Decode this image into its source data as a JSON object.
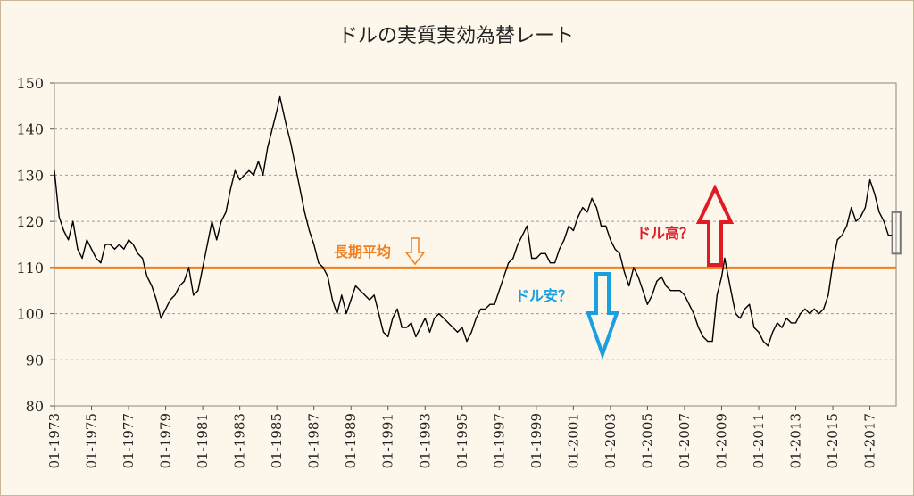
{
  "chart_data": {
    "type": "line",
    "title": "ドルの実質実効為替レート",
    "xlabel": "",
    "ylabel": "",
    "ylim": [
      80,
      150
    ],
    "yticks": [
      80,
      90,
      100,
      110,
      120,
      130,
      140,
      150
    ],
    "grid": "horizontal dashed",
    "x_tick_labels": [
      "01-1973",
      "01-1975",
      "01-1977",
      "01-1979",
      "01-1981",
      "01-1983",
      "01-1985",
      "01-1987",
      "01-1989",
      "01-1991",
      "01-1993",
      "01-1995",
      "01-1997",
      "01-1999",
      "01-2001",
      "01-2003",
      "01-2005",
      "01-2007",
      "01-2009",
      "01-2011",
      "01-2013",
      "01-2015",
      "01-2017"
    ],
    "x_range": [
      "01-1973",
      "01-2018"
    ],
    "series": [
      {
        "color": "#000000",
        "points": [
          [
            "1973-01",
            131
          ],
          [
            "1973-04",
            121
          ],
          [
            "1973-07",
            118
          ],
          [
            "1973-10",
            116
          ],
          [
            "1974-01",
            120
          ],
          [
            "1974-04",
            114
          ],
          [
            "1974-07",
            112
          ],
          [
            "1974-10",
            116
          ],
          [
            "1975-01",
            114
          ],
          [
            "1975-04",
            112
          ],
          [
            "1975-07",
            111
          ],
          [
            "1975-10",
            115
          ],
          [
            "1976-01",
            115
          ],
          [
            "1976-04",
            114
          ],
          [
            "1976-07",
            115
          ],
          [
            "1976-10",
            114
          ],
          [
            "1977-01",
            116
          ],
          [
            "1977-04",
            115
          ],
          [
            "1977-07",
            113
          ],
          [
            "1977-10",
            112
          ],
          [
            "1978-01",
            108
          ],
          [
            "1978-04",
            106
          ],
          [
            "1978-07",
            103
          ],
          [
            "1978-10",
            99
          ],
          [
            "1979-01",
            101
          ],
          [
            "1979-04",
            103
          ],
          [
            "1979-07",
            104
          ],
          [
            "1979-10",
            106
          ],
          [
            "1980-01",
            107
          ],
          [
            "1980-04",
            110
          ],
          [
            "1980-07",
            104
          ],
          [
            "1980-10",
            105
          ],
          [
            "1981-01",
            110
          ],
          [
            "1981-04",
            115
          ],
          [
            "1981-07",
            120
          ],
          [
            "1981-10",
            116
          ],
          [
            "1982-01",
            120
          ],
          [
            "1982-04",
            122
          ],
          [
            "1982-07",
            127
          ],
          [
            "1982-10",
            131
          ],
          [
            "1983-01",
            129
          ],
          [
            "1983-04",
            130
          ],
          [
            "1983-07",
            131
          ],
          [
            "1983-10",
            130
          ],
          [
            "1984-01",
            133
          ],
          [
            "1984-04",
            130
          ],
          [
            "1984-07",
            136
          ],
          [
            "1984-10",
            140
          ],
          [
            "1985-01",
            144
          ],
          [
            "1985-03",
            147
          ],
          [
            "1985-07",
            141
          ],
          [
            "1985-10",
            137
          ],
          [
            "1986-01",
            132
          ],
          [
            "1986-04",
            127
          ],
          [
            "1986-07",
            122
          ],
          [
            "1986-10",
            118
          ],
          [
            "1987-01",
            115
          ],
          [
            "1987-04",
            111
          ],
          [
            "1987-07",
            110
          ],
          [
            "1987-10",
            108
          ],
          [
            "1988-01",
            103
          ],
          [
            "1988-04",
            100
          ],
          [
            "1988-07",
            104
          ],
          [
            "1988-10",
            100
          ],
          [
            "1989-01",
            103
          ],
          [
            "1989-04",
            106
          ],
          [
            "1989-07",
            105
          ],
          [
            "1989-10",
            104
          ],
          [
            "1990-01",
            103
          ],
          [
            "1990-04",
            104
          ],
          [
            "1990-07",
            100
          ],
          [
            "1990-10",
            96
          ],
          [
            "1991-01",
            95
          ],
          [
            "1991-04",
            99
          ],
          [
            "1991-07",
            101
          ],
          [
            "1991-10",
            97
          ],
          [
            "1992-01",
            97
          ],
          [
            "1992-04",
            98
          ],
          [
            "1992-07",
            95
          ],
          [
            "1992-10",
            97
          ],
          [
            "1993-01",
            99
          ],
          [
            "1993-04",
            96
          ],
          [
            "1993-07",
            99
          ],
          [
            "1993-10",
            100
          ],
          [
            "1994-01",
            99
          ],
          [
            "1994-04",
            98
          ],
          [
            "1994-07",
            97
          ],
          [
            "1994-10",
            96
          ],
          [
            "1995-01",
            97
          ],
          [
            "1995-04",
            94
          ],
          [
            "1995-07",
            96
          ],
          [
            "1995-10",
            99
          ],
          [
            "1996-01",
            101
          ],
          [
            "1996-04",
            101
          ],
          [
            "1996-07",
            102
          ],
          [
            "1996-10",
            102
          ],
          [
            "1997-01",
            105
          ],
          [
            "1997-04",
            108
          ],
          [
            "1997-07",
            111
          ],
          [
            "1997-10",
            112
          ],
          [
            "1998-01",
            115
          ],
          [
            "1998-04",
            117
          ],
          [
            "1998-07",
            119
          ],
          [
            "1998-10",
            112
          ],
          [
            "1999-01",
            112
          ],
          [
            "1999-04",
            113
          ],
          [
            "1999-07",
            113
          ],
          [
            "1999-10",
            111
          ],
          [
            "2000-01",
            111
          ],
          [
            "2000-04",
            114
          ],
          [
            "2000-07",
            116
          ],
          [
            "2000-10",
            119
          ],
          [
            "2001-01",
            118
          ],
          [
            "2001-04",
            121
          ],
          [
            "2001-07",
            123
          ],
          [
            "2001-10",
            122
          ],
          [
            "2002-01",
            125
          ],
          [
            "2002-04",
            123
          ],
          [
            "2002-07",
            119
          ],
          [
            "2002-10",
            119
          ],
          [
            "2003-01",
            116
          ],
          [
            "2003-04",
            114
          ],
          [
            "2003-07",
            113
          ],
          [
            "2003-10",
            109
          ],
          [
            "2004-01",
            106
          ],
          [
            "2004-04",
            110
          ],
          [
            "2004-07",
            108
          ],
          [
            "2004-10",
            105
          ],
          [
            "2005-01",
            102
          ],
          [
            "2005-04",
            104
          ],
          [
            "2005-07",
            107
          ],
          [
            "2005-10",
            108
          ],
          [
            "2006-01",
            106
          ],
          [
            "2006-04",
            105
          ],
          [
            "2006-07",
            105
          ],
          [
            "2006-10",
            105
          ],
          [
            "2007-01",
            104
          ],
          [
            "2007-04",
            102
          ],
          [
            "2007-07",
            100
          ],
          [
            "2007-10",
            97
          ],
          [
            "2008-01",
            95
          ],
          [
            "2008-04",
            94
          ],
          [
            "2008-07",
            94
          ],
          [
            "2008-10",
            104
          ],
          [
            "2009-01",
            108
          ],
          [
            "2009-03",
            112
          ],
          [
            "2009-07",
            105
          ],
          [
            "2009-10",
            100
          ],
          [
            "2010-01",
            99
          ],
          [
            "2010-04",
            101
          ],
          [
            "2010-07",
            102
          ],
          [
            "2010-10",
            97
          ],
          [
            "2011-01",
            96
          ],
          [
            "2011-04",
            94
          ],
          [
            "2011-07",
            93
          ],
          [
            "2011-10",
            96
          ],
          [
            "2012-01",
            98
          ],
          [
            "2012-04",
            97
          ],
          [
            "2012-07",
            99
          ],
          [
            "2012-10",
            98
          ],
          [
            "2013-01",
            98
          ],
          [
            "2013-04",
            100
          ],
          [
            "2013-07",
            101
          ],
          [
            "2013-10",
            100
          ],
          [
            "2014-01",
            101
          ],
          [
            "2014-04",
            100
          ],
          [
            "2014-07",
            101
          ],
          [
            "2014-10",
            104
          ],
          [
            "2015-01",
            111
          ],
          [
            "2015-04",
            116
          ],
          [
            "2015-07",
            117
          ],
          [
            "2015-10",
            119
          ],
          [
            "2016-01",
            123
          ],
          [
            "2016-04",
            120
          ],
          [
            "2016-07",
            121
          ],
          [
            "2016-10",
            123
          ],
          [
            "2017-01",
            129
          ],
          [
            "2017-04",
            126
          ],
          [
            "2017-07",
            122
          ],
          [
            "2017-10",
            120
          ],
          [
            "2018-01",
            117
          ],
          [
            "2018-03",
            117
          ]
        ]
      }
    ],
    "reference_line": {
      "value": 110,
      "color": "#f07f1f"
    },
    "annotations": [
      {
        "text": "長期平均",
        "color": "#f07f1f",
        "arrow": "down",
        "arrow_style": "outline"
      },
      {
        "text": "ドル高？",
        "color": "#e01b24",
        "arrow": "up",
        "arrow_style": "outline-bold"
      },
      {
        "text": "ドル安？",
        "color": "#1a9fe0",
        "arrow": "down",
        "arrow_style": "outline-bold"
      }
    ],
    "highlight_box": {
      "from": "2017-12",
      "to": "2018-03",
      "y_range": [
        113,
        122
      ],
      "color": "#777777"
    }
  }
}
